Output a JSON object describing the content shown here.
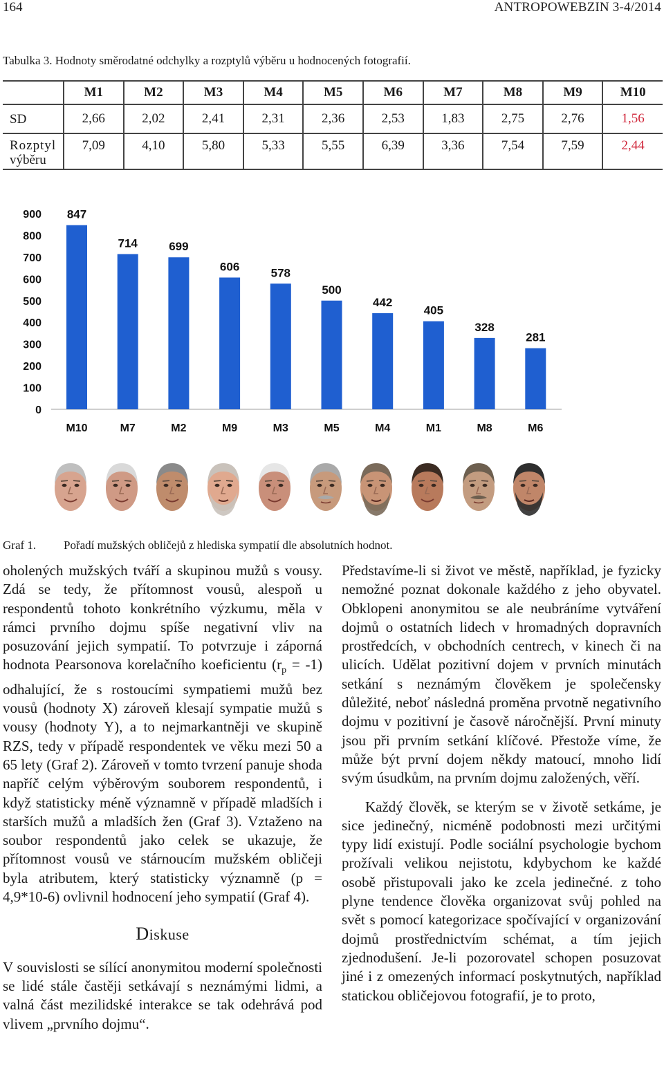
{
  "header": {
    "page_number": "164",
    "journal": "ANTROPOWEBZIN 3-4/2014"
  },
  "table": {
    "caption": "Tabulka 3. Hodnoty směrodatné odchylky a rozptylů výběru u hodnocených fotografií.",
    "columns": [
      "M1",
      "M2",
      "M3",
      "M4",
      "M5",
      "M6",
      "M7",
      "M8",
      "M9",
      "M10"
    ],
    "rows": [
      {
        "label": "SD",
        "values": [
          "2,66",
          "2,02",
          "2,41",
          "2,31",
          "2,36",
          "2,53",
          "1,83",
          "2,75",
          "2,76",
          "1,56"
        ]
      },
      {
        "label_line1": "Rozptyl",
        "label_line2": "výběru",
        "values": [
          "7,09",
          "4,10",
          "5,80",
          "5,33",
          "5,55",
          "6,39",
          "3,36",
          "7,54",
          "7,59",
          "2,44"
        ]
      }
    ],
    "highlight_color": "#d0263a"
  },
  "chart_data": {
    "type": "bar",
    "categories": [
      "M10",
      "M7",
      "M2",
      "M9",
      "M3",
      "M5",
      "M4",
      "M1",
      "M8",
      "M6"
    ],
    "values": [
      847,
      714,
      699,
      606,
      578,
      500,
      442,
      405,
      328,
      281
    ],
    "data_labels": [
      "847",
      "714",
      "699",
      "606",
      "578",
      "500",
      "442",
      "405",
      "328",
      "281"
    ],
    "ylim": [
      0,
      900
    ],
    "yticks": [
      0,
      100,
      200,
      300,
      400,
      500,
      600,
      700,
      800,
      900
    ],
    "ytick_labels": [
      "0",
      "100",
      "200",
      "300",
      "400",
      "500",
      "600",
      "700",
      "800",
      "900"
    ],
    "title": "",
    "xlabel": "",
    "ylabel": "",
    "bar_color": "#1f5fd0",
    "grid": false,
    "legend": "none"
  },
  "faces": [
    {
      "skin": "#d7a48f",
      "hair": "#bfbfbf",
      "mouth": "smile"
    },
    {
      "skin": "#cf9a85",
      "hair": "#d9d9d9",
      "mouth": "smile"
    },
    {
      "skin": "#bf8c6c",
      "hair": "#8a8a8a",
      "mouth": "smile"
    },
    {
      "skin": "#e0a98f",
      "hair": "#c9c2bb",
      "mouth": "beard"
    },
    {
      "skin": "#c98f7a",
      "hair": "#e6e6e6",
      "mouth": "smile"
    },
    {
      "skin": "#c79a7c",
      "hair": "#a9a9a9",
      "mouth": "moustache"
    },
    {
      "skin": "#c89476",
      "hair": "#7a6a5a",
      "mouth": "beard"
    },
    {
      "skin": "#b87a5c",
      "hair": "#3b2b22",
      "mouth": "smile"
    },
    {
      "skin": "#c39c80",
      "hair": "#6d5f4f",
      "mouth": "moustache"
    },
    {
      "skin": "#c08669",
      "hair": "#2e2e2e",
      "mouth": "beard"
    }
  ],
  "graph_caption": {
    "number": "Graf 1.",
    "text": "Pořadí mužských obličejů z hlediska sympatií dle absolutních hodnot."
  },
  "left_column": {
    "p1_a": "oholených mužských tváří a skupinou mužů s vousy. Zdá se tedy, že přítomnost vousů, alespoň u respondentů tohoto konkrétního výzkumu, měla v rámci prvního dojmu spíše negativní vliv na posuzování jejich sympatií. To potvrzuje i záporná hodnota Pearsonova korelačního koeficientu (r",
    "p1_sub": "p",
    "p1_b": " = -1) odhalující, že s rostoucími sympatiemi mužů bez vousů (hodnoty X) zároveň klesají sympatie mužů s vousy (hodnoty Y), a to nejmarkantněji ve skupině RZS, tedy v případě respondentek ve věku mezi 50 a 65 lety (Graf 2). Zároveň v tomto tvrzení panuje shoda napříč celým výběrovým souborem respondentů, i když statisticky méně významně v případě mladších i starších mužů a mladších žen (Graf 3). Vztaženo na soubor respondentů jako celek se ukazuje, že přítomnost vousů ve stárnoucím mužském obličeji byla atributem, který statisticky významně (p = 4,9*10-6) ovlivnil hodnocení jeho sympatií (Graf 4).",
    "heading": "Diskuse",
    "p2": "V souvislosti se sílící anonymitou moderní společnosti se lidé stále častěji setkávají s neznámými lidmi, a valná část mezilidské interakce se tak odehrává pod vlivem „prvního dojmu“."
  },
  "right_column": {
    "p1": "Představíme-li si život ve městě, například, je fyzicky nemožné poznat dokonale každého z jeho obyvatel. Obklopeni anonymitou se ale neubráníme vytváření dojmů o ostatních lidech v hromadných dopravních prostředcích, v obchodních centrech, v kinech či na ulicích. Udělat pozitivní dojem v prvních minutách setkání s neznámým člověkem je společensky důležité, neboť následná proměna prvotně negativního dojmu v pozitivní je časově náročnější. První minuty jsou při prvním setkání klíčové. Přestože víme, že může být první dojem někdy matoucí, mnoho lidí svým úsudkům, na prvním dojmu založených, věří.",
    "p2": "Každý člověk, se kterým se v životě setkáme, je sice jedinečný, nicméně podobnosti mezi určitými typy lidí existují. Podle sociální psychologie bychom prožívali velikou nejistotu, kdybychom ke každé osobě přistupovali jako ke zcela jedinečné. z toho plyne tendence člověka organizovat svůj pohled na svět s pomocí kategorizace spočívající v organizování dojmů prostřednictvím schémat, a tím jejich zjednodušení. Je-li pozorovatel schopen posuzovat jiné i z omezených informací poskytnutých, například statickou obličejovou fotografií, je to proto,"
  }
}
